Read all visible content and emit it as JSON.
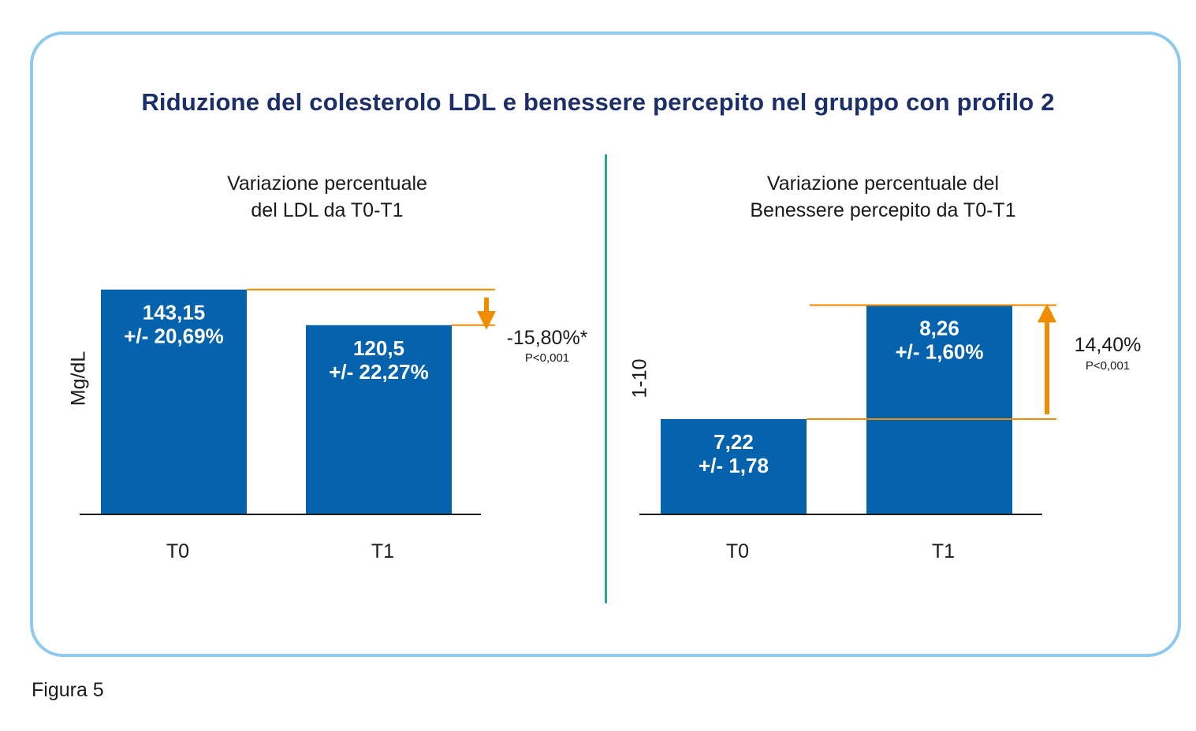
{
  "title": "Riduzione del colesterolo LDL e benessere percepito nel gruppo con profilo 2",
  "caption": "Figura 5",
  "colors": {
    "bar": "#0562ad",
    "arrow": "#f08c00",
    "divider": "#2aa597",
    "frame": "#8ec9ee",
    "title": "#1c2f6b"
  },
  "chart_data": [
    {
      "type": "bar",
      "title": "Variazione percentuale\ndel LDL da T0-T1",
      "ylabel": "Mg/dL",
      "categories": [
        "T0",
        "T1"
      ],
      "values": [
        143.15,
        120.5
      ],
      "value_labels": [
        [
          "143,15",
          "+/- 20,69%"
        ],
        [
          "120,5",
          "+/- 22,27%"
        ]
      ],
      "change": {
        "label": "-15,80%*",
        "p_value": "P<0,001",
        "direction": "down"
      },
      "ylim": [
        0,
        150
      ],
      "grid": false
    },
    {
      "type": "bar",
      "title": "Variazione percentuale del\nBenessere percepito da T0-T1",
      "ylabel": "1-10",
      "categories": [
        "T0",
        "T1"
      ],
      "values": [
        7.22,
        8.26
      ],
      "value_labels": [
        [
          "7,22",
          "+/- 1,78"
        ],
        [
          "8,26",
          "+/- 1,60%"
        ]
      ],
      "change": {
        "label": "14,40%",
        "p_value": "P<0,001",
        "direction": "up"
      },
      "ylim": [
        6.35,
        8.5
      ],
      "grid": false
    }
  ]
}
